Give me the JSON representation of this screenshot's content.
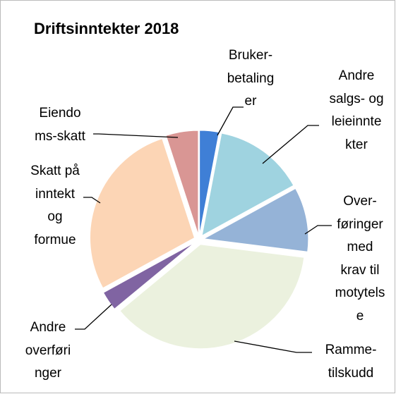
{
  "chart_data": {
    "type": "pie",
    "title": "Driftsinntekter 2018",
    "categories": [
      "Bruker-\nbetaling\ner",
      "Andre\nsalgs- og\nleieinnte\nkter",
      "Over-\nføringer\nmed\nkrav til\nmotytels\ne",
      "Ramme-\ntilskudd",
      "Andre\noverføri\nnger",
      "Skatt på\ninntekt\nog\nformue",
      "Eiendo\nms-skatt"
    ],
    "values": [
      3,
      14,
      10,
      37,
      3,
      28,
      5
    ],
    "colors": [
      "#3f7fd6",
      "#9fd3e0",
      "#95b3d7",
      "#ebf1de",
      "#8064a2",
      "#fcd5b5",
      "#d99694"
    ]
  }
}
